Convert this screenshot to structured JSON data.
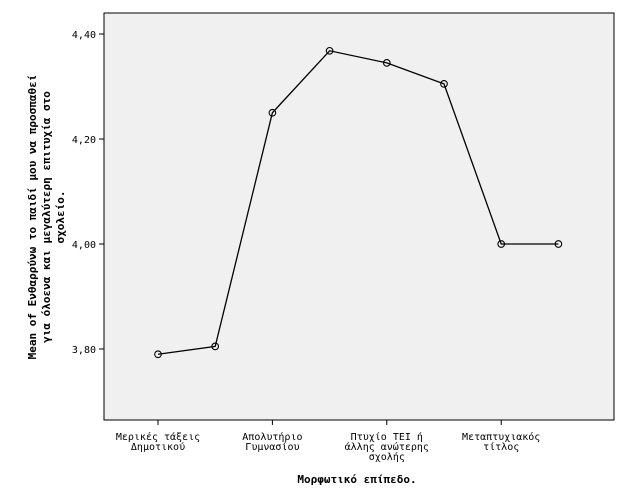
{
  "chart_data": {
    "type": "line",
    "title": "",
    "xlabel": "Μορφωτικό επίπεδο.",
    "ylabel": [
      "Mean of Ενθαρρύνω το παιδί μου να προσπαθεί",
      "για όλοενα και μεγαλύτερη επιτυχία στο",
      "σχολείο."
    ],
    "ylim": [
      3.7,
      4.45
    ],
    "yticks": [
      3.8,
      4.0,
      4.2,
      4.4
    ],
    "ytick_labels": [
      "3,80",
      "4,00",
      "4,20",
      "4,40"
    ],
    "x_tick_labels": [
      [
        "Μερικές τάξεις",
        "Δημοτικού"
      ],
      [
        "Απολυτήριο",
        "Γυμνασίου"
      ],
      [
        "Πτυχίο ΤΕΙ ή",
        "άλλης ανώτερης",
        "σχολής"
      ],
      [
        "Μεταπτυχιακός",
        "τίτλος"
      ]
    ],
    "x_tick_positions": [
      0,
      2,
      4,
      6
    ],
    "values": [
      3.79,
      3.805,
      4.25,
      4.368,
      4.345,
      4.305,
      4.0,
      4.0
    ],
    "marker": "open-circle",
    "plot_background": "#f0f0f0",
    "line_color": "#000000",
    "grid": false
  }
}
